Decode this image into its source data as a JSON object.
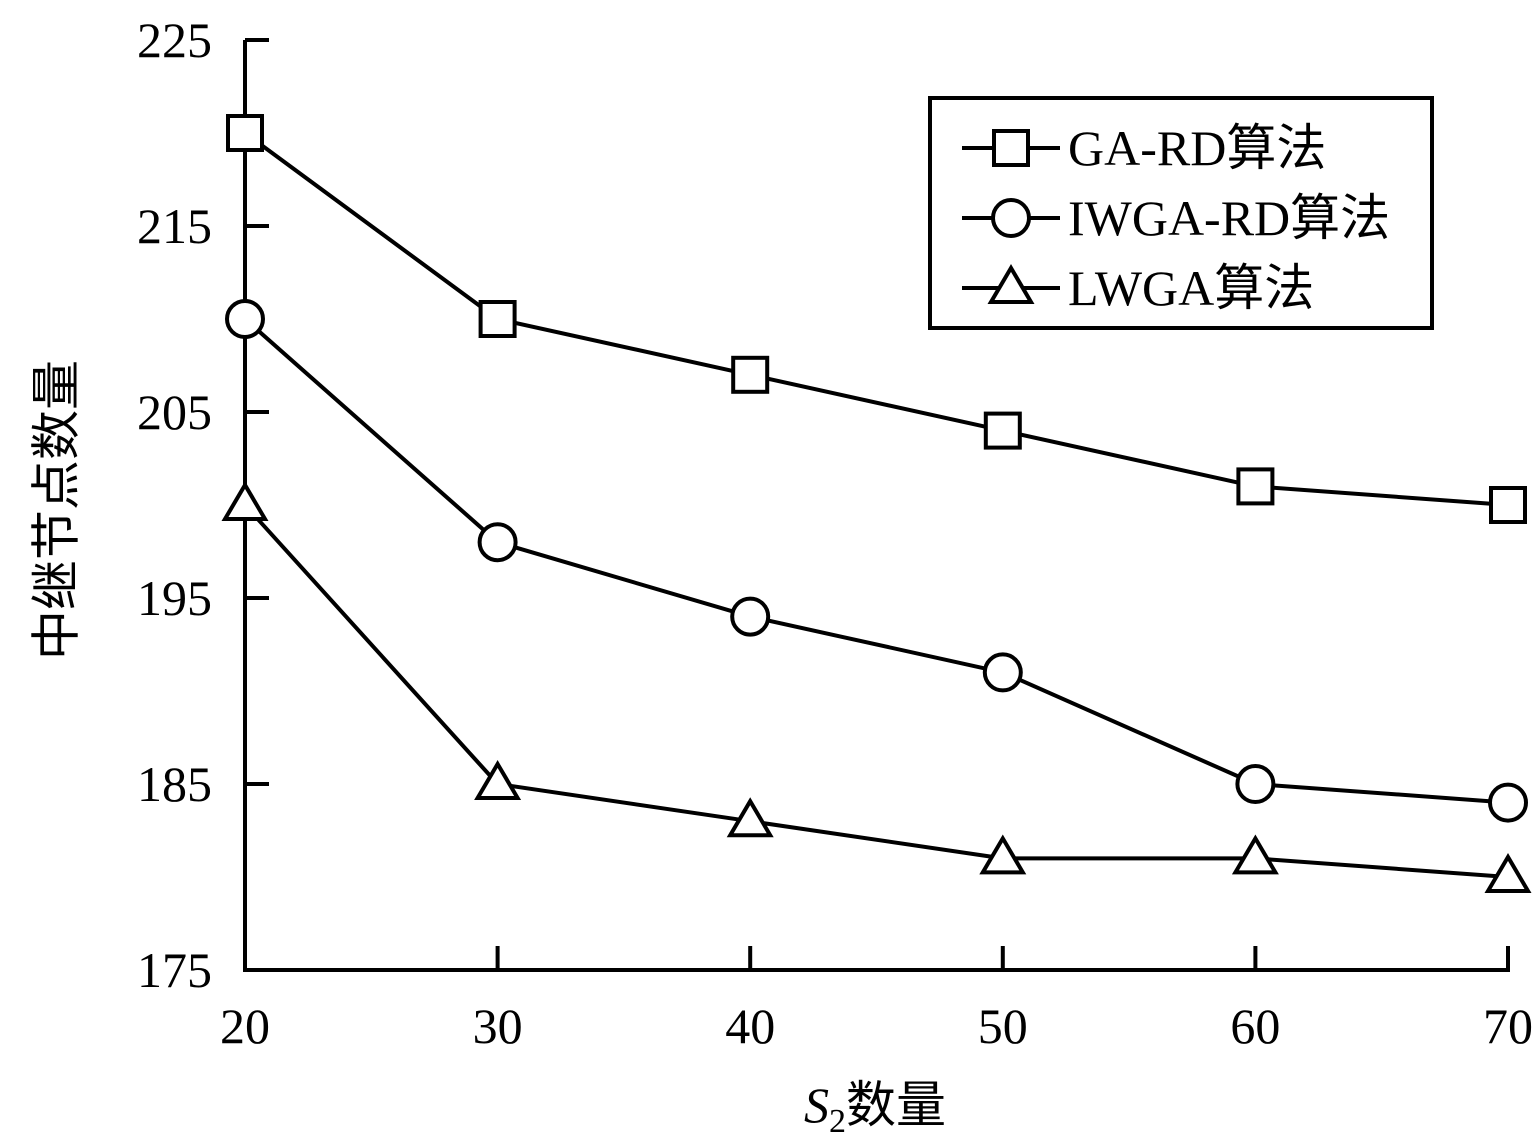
{
  "chart_data": {
    "type": "line",
    "title": "",
    "xlabel": {
      "italic": "S",
      "sub": "2",
      "rest": "数量"
    },
    "ylabel": "中继节点数量",
    "x": [
      20,
      30,
      40,
      50,
      60,
      70
    ],
    "xlim": [
      20,
      70
    ],
    "ylim": [
      175,
      225
    ],
    "xticks": [
      "20",
      "30",
      "40",
      "50",
      "60",
      "70"
    ],
    "yticks": [
      "175",
      "185",
      "195",
      "205",
      "215",
      "225"
    ],
    "grid": false,
    "legend_position": "top-right",
    "series": [
      {
        "name": "GA-RD算法",
        "marker": "square",
        "values": [
          220,
          210,
          207,
          204,
          201,
          200
        ]
      },
      {
        "name": "IWGA-RD算法",
        "marker": "circle",
        "values": [
          210,
          198,
          194,
          191,
          185,
          184
        ]
      },
      {
        "name": "LWGA算法",
        "marker": "triangle",
        "values": [
          200,
          185,
          183,
          181,
          181,
          180
        ]
      }
    ],
    "colors": {
      "line": "#000000",
      "marker_fill": "#ffffff"
    }
  }
}
